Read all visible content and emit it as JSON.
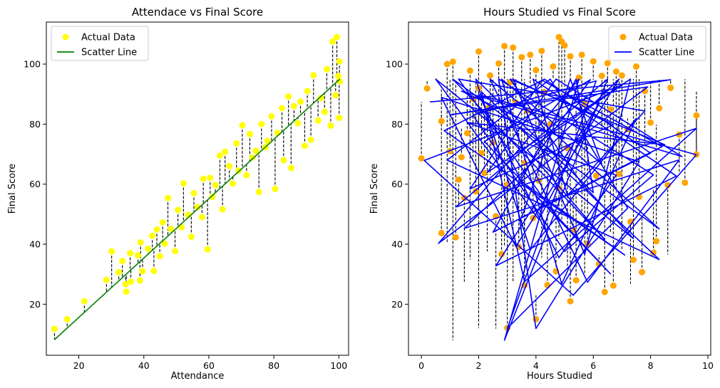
{
  "chart_data": [
    {
      "type": "scatter",
      "title": "Attendace vs Final Score",
      "xlabel": "Attendance",
      "ylabel": "Final Score",
      "xlim": [
        10,
        103
      ],
      "ylim": [
        3,
        114
      ],
      "xticks": [
        20,
        40,
        60,
        80,
        100
      ],
      "yticks": [
        20,
        40,
        60,
        80,
        100
      ],
      "legend": {
        "placement": "top-left",
        "entries": [
          "Actual Data",
          "Scatter Line"
        ]
      },
      "series": [
        {
          "name": "Actual Data",
          "kind": "points",
          "color": "#ffff00",
          "x": [
            12.5,
            16.4,
            21.7,
            28.5,
            30.1,
            32.3,
            33.4,
            34.4,
            34.6,
            35.8,
            36.0,
            38.2,
            38.8,
            39.0,
            39.6,
            41.3,
            42.6,
            43.1,
            44.0,
            44.9,
            45.8,
            46.4,
            47.4,
            48.3,
            49.6,
            50.5,
            51.6,
            52.2,
            53.6,
            54.6,
            55.4,
            56.5,
            57.9,
            58.3,
            59.6,
            60.4,
            61.1,
            62.0,
            63.4,
            64.2,
            65.0,
            66.3,
            67.4,
            68.5,
            69.1,
            70.3,
            71.6,
            72.6,
            73.4,
            74.5,
            75.4,
            76.2,
            77.4,
            78.0,
            79.3,
            80.4,
            81.1,
            82.5,
            83.0,
            84.5,
            85.3,
            86.2,
            87.4,
            88.2,
            89.5,
            90.3,
            91.4,
            92.2,
            93.6,
            94.5,
            95.6,
            96.3,
            97.5,
            98.1,
            99.0,
            99.4,
            99.8,
            100.1,
            100.2,
            100.3
          ],
          "y": [
            11.8,
            15.0,
            21.0,
            28.1,
            37.6,
            30.7,
            34.4,
            26.7,
            24.2,
            37.0,
            27.5,
            36.3,
            27.9,
            40.6,
            31.0,
            38.5,
            42.8,
            31.1,
            44.9,
            36.0,
            47.3,
            40.2,
            55.4,
            45.1,
            37.7,
            51.4,
            45.6,
            60.3,
            49.8,
            42.5,
            57.0,
            52.4,
            49.0,
            61.8,
            38.3,
            62.1,
            55.8,
            59.7,
            69.5,
            51.6,
            70.8,
            66.0,
            60.2,
            73.6,
            64.5,
            79.6,
            63.0,
            76.7,
            68.9,
            71.1,
            57.4,
            80.0,
            72.3,
            74.4,
            82.6,
            58.4,
            77.1,
            85.3,
            68.0,
            89.2,
            65.4,
            86.0,
            80.3,
            87.5,
            72.8,
            91.0,
            74.8,
            96.3,
            81.2,
            88.7,
            84.1,
            98.3,
            79.5,
            107.5,
            89.6,
            109.0,
            96.0,
            82.1,
            100.9,
            94.2
          ]
        },
        {
          "name": "Scatter Line",
          "kind": "line",
          "color": "#008000",
          "x": [
            12.5,
            100.3
          ],
          "y": [
            8.2,
            95.0
          ]
        }
      ]
    },
    {
      "type": "scatter",
      "title": "Hours Studied vs Final Score",
      "xlabel": "Hours Studied",
      "ylabel": "Final Score",
      "xlim": [
        -0.45,
        10.1
      ],
      "ylim": [
        3,
        114
      ],
      "xticks": [
        0,
        2,
        4,
        6,
        8,
        10
      ],
      "yticks": [
        20,
        40,
        60,
        80,
        100
      ],
      "legend": {
        "placement": "top-right",
        "entries": [
          "Actual Data",
          "Scatter Line"
        ]
      },
      "series": [
        {
          "name": "Actual Data",
          "kind": "points",
          "color": "#ffa500",
          "x": [
            0.0,
            0.2,
            0.7,
            0.7,
            0.9,
            1.0,
            1.1,
            1.2,
            1.3,
            1.4,
            1.5,
            1.6,
            1.7,
            1.8,
            1.9,
            2.0,
            2.0,
            2.1,
            2.2,
            2.3,
            2.4,
            2.5,
            2.6,
            2.7,
            2.8,
            2.9,
            3.0,
            3.0,
            3.1,
            3.2,
            3.3,
            3.4,
            3.5,
            3.6,
            3.6,
            3.7,
            3.8,
            3.9,
            4.0,
            4.0,
            4.1,
            4.2,
            4.3,
            4.4,
            4.5,
            4.6,
            4.7,
            4.8,
            4.8,
            4.9,
            5.0,
            5.1,
            5.2,
            5.2,
            5.3,
            5.4,
            5.5,
            5.6,
            5.7,
            5.8,
            6.0,
            6.1,
            6.2,
            6.3,
            6.4,
            6.5,
            6.6,
            6.7,
            6.8,
            6.9,
            7.0,
            7.2,
            7.3,
            7.4,
            7.5,
            7.6,
            7.7,
            7.8,
            8.0,
            8.1,
            8.2,
            8.3,
            8.6,
            8.7,
            9.0,
            9.2,
            9.6,
            9.6
          ],
          "y": [
            68.6,
            91.9,
            81.0,
            43.7,
            100.0,
            71.0,
            100.8,
            42.3,
            61.5,
            69.0,
            55.4,
            77.0,
            97.8,
            88.4,
            57.6,
            104.2,
            92.0,
            70.4,
            63.7,
            85.3,
            96.2,
            73.9,
            49.3,
            100.2,
            36.7,
            106.0,
            12.1,
            59.8,
            94.0,
            105.5,
            87.2,
            39.1,
            102.3,
            26.3,
            67.0,
            84.5,
            103.1,
            48.7,
            15.0,
            98.0,
            61.2,
            104.4,
            90.6,
            26.4,
            80.0,
            99.2,
            31.0,
            109.0,
            58.7,
            107.5,
            106.2,
            72.0,
            21.0,
            102.6,
            44.6,
            28.0,
            95.5,
            103.1,
            86.8,
            40.2,
            100.9,
            62.8,
            33.4,
            96.1,
            24.1,
            100.3,
            84.9,
            26.2,
            97.5,
            63.4,
            96.2,
            78.3,
            47.5,
            34.8,
            99.2,
            55.8,
            30.7,
            91.0,
            80.5,
            37.2,
            41.0,
            85.3,
            59.7,
            92.1,
            76.5,
            60.5,
            82.9,
            69.9
          ]
        },
        {
          "name": "Scatter Line",
          "kind": "line",
          "color": "#0000ff",
          "x": [
            0.3,
            8.7,
            1.0,
            7.9,
            0.6,
            5.5,
            2.9,
            6.5,
            1.2,
            9.6,
            3.6,
            2.1,
            8.3,
            0.9,
            4.5,
            7.2,
            3.0,
            6.1,
            1.8,
            5.0,
            8.1,
            2.7,
            4.0,
            7.6,
            0.7,
            3.3,
            6.9,
            1.5,
            9.0,
            5.8,
            2.4,
            4.4,
            8.3,
            1.1,
            6.4,
            3.7,
            7.0,
            0.1,
            5.3,
            9.6,
            2.0,
            4.8,
            6.8,
            1.6,
            8.5,
            3.1,
            5.6,
            7.4,
            0.5,
            4.1,
            6.2,
            2.6,
            8.9,
            3.9,
            5.1,
            7.8,
            1.3,
            4.6,
            6.6,
            2.2,
            5.9,
            3.4,
            7.1,
            0.8,
            4.3,
            8.0,
            2.5,
            5.4,
            6.0,
            1.9,
            3.8,
            7.5,
            4.9,
            2.8,
            6.3,
            5.2,
            3.5,
            8.4,
            4.2,
            1.7,
            6.7,
            3.2,
            5.7,
            7.3,
            2.3,
            4.7,
            9.1,
            1.4,
            5.0
          ],
          "y": [
            87.4,
            94.8,
            83.1,
            92.4,
            40.3,
            95.0,
            8.0,
            95.0,
            52.4,
            78.6,
            27.5,
            90.7,
            34.9,
            68.0,
            95.0,
            52.0,
            12.0,
            94.4,
            83.0,
            37.6,
            63.1,
            95.0,
            11.9,
            67.5,
            88.9,
            39.2,
            95.0,
            45.3,
            68.1,
            27.3,
            95.0,
            79.1,
            45.1,
            95.0,
            41.6,
            71.4,
            93.0,
            67.9,
            23.0,
            69.8,
            89.8,
            35.5,
            63.0,
            80.5,
            73.1,
            95.0,
            60.2,
            41.9,
            95.0,
            48.2,
            86.8,
            32.8,
            62.7,
            95.0,
            56.3,
            84.4,
            95.0,
            50.7,
            30.1,
            74.2,
            94.8,
            61.5,
            36.4,
            77.8,
            95.0,
            70.3,
            44.0,
            95.0,
            57.2,
            95.0,
            38.1,
            81.9,
            26.8,
            95.0,
            66.7,
            95.0,
            48.9,
            72.5,
            94.7,
            58.4,
            79.8,
            94.9,
            36.6,
            95.0,
            63.9,
            95.0,
            69.2,
            91.0,
            75.0
          ]
        }
      ]
    }
  ]
}
